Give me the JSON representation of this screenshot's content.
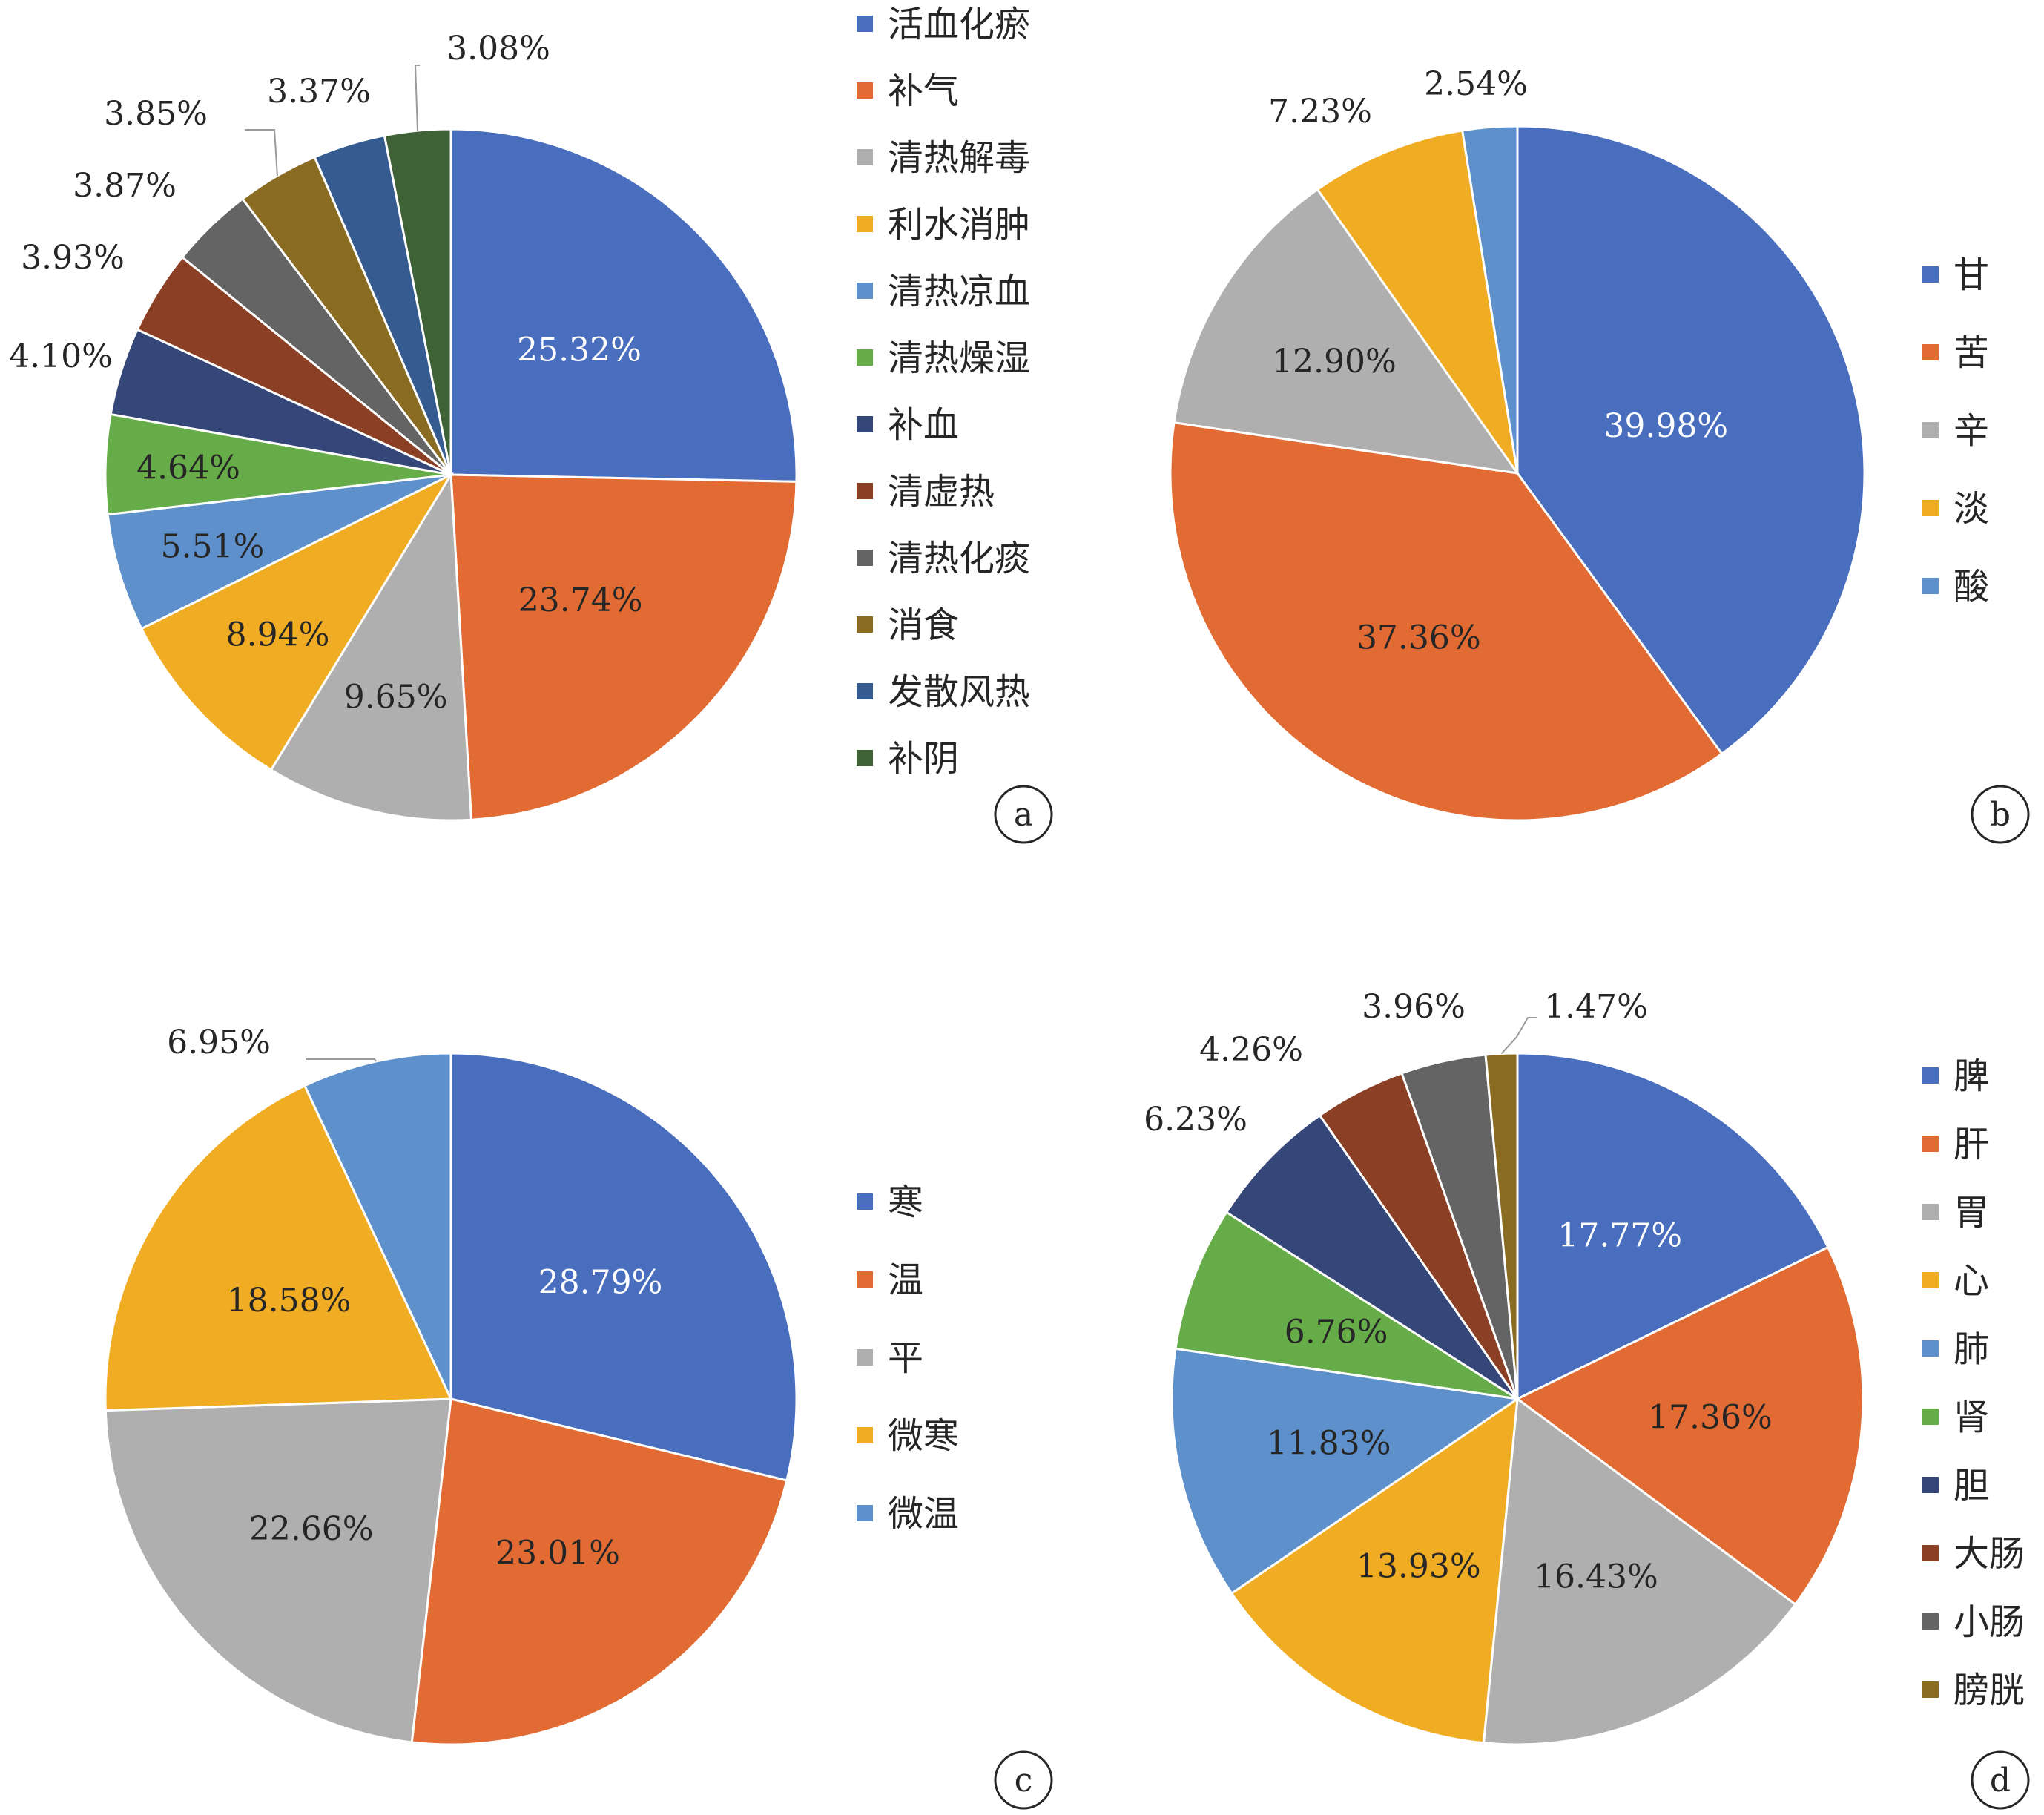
{
  "colors": {
    "blue": "#4A6EBE",
    "orange": "#E26B33",
    "gray": "#AFAFAF",
    "gold": "#F0AD24",
    "lightblue": "#5E91CB",
    "green": "#66AC48",
    "navy": "#354779",
    "brown": "#8B3F24",
    "darkgray": "#646464",
    "olive": "#8A6B22",
    "steelblue": "#355B91",
    "darkgreen": "#3E6135"
  },
  "chart_data": [
    {
      "type": "pie",
      "panel": "a",
      "slices": [
        {
          "label": "活血化瘀",
          "value": 25.32,
          "display": "25.32%",
          "color": "#4A6EBE"
        },
        {
          "label": "补气",
          "value": 23.74,
          "display": "23.74%",
          "color": "#E26B33"
        },
        {
          "label": "清热解毒",
          "value": 9.65,
          "display": "9.65%",
          "color": "#AFAFAF"
        },
        {
          "label": "利水消肿",
          "value": 8.94,
          "display": "8.94%",
          "color": "#F0AD24"
        },
        {
          "label": "清热凉血",
          "value": 5.51,
          "display": "5.51%",
          "color": "#5E91CB"
        },
        {
          "label": "清热燥湿",
          "value": 4.64,
          "display": "4.64%",
          "color": "#66AC48"
        },
        {
          "label": "补血",
          "value": 4.1,
          "display": "4.10%",
          "color": "#354779"
        },
        {
          "label": "清虚热",
          "value": 3.93,
          "display": "3.93%",
          "color": "#8B3F24"
        },
        {
          "label": "清热化痰",
          "value": 3.87,
          "display": "3.87%",
          "color": "#646464"
        },
        {
          "label": "消食",
          "value": 3.85,
          "display": "3.85%",
          "color": "#8A6B22"
        },
        {
          "label": "发散风热",
          "value": 3.37,
          "display": "3.37%",
          "color": "#355B91"
        },
        {
          "label": "补阴",
          "value": 3.08,
          "display": "3.08%",
          "color": "#3E6135"
        }
      ]
    },
    {
      "type": "pie",
      "panel": "b",
      "slices": [
        {
          "label": "甘",
          "value": 39.98,
          "display": "39.98%",
          "color": "#4A6EBE"
        },
        {
          "label": "苦",
          "value": 37.36,
          "display": "37.36%",
          "color": "#E26B33"
        },
        {
          "label": "辛",
          "value": 12.9,
          "display": "12.90%",
          "color": "#AFAFAF"
        },
        {
          "label": "淡",
          "value": 7.23,
          "display": "7.23%",
          "color": "#F0AD24"
        },
        {
          "label": "酸",
          "value": 2.54,
          "display": "2.54%",
          "color": "#5E91CB"
        }
      ]
    },
    {
      "type": "pie",
      "panel": "c",
      "slices": [
        {
          "label": "寒",
          "value": 28.79,
          "display": "28.79%",
          "color": "#4A6EBE"
        },
        {
          "label": "温",
          "value": 23.01,
          "display": "23.01%",
          "color": "#E26B33"
        },
        {
          "label": "平",
          "value": 22.66,
          "display": "22.66%",
          "color": "#AFAFAF"
        },
        {
          "label": "微寒",
          "value": 18.58,
          "display": "18.58%",
          "color": "#F0AD24"
        },
        {
          "label": "微温",
          "value": 6.95,
          "display": "6.95%",
          "color": "#5E91CB"
        }
      ]
    },
    {
      "type": "pie",
      "panel": "d",
      "slices": [
        {
          "label": "脾",
          "value": 17.77,
          "display": "17.77%",
          "color": "#4A6EBE"
        },
        {
          "label": "肝",
          "value": 17.36,
          "display": "17.36%",
          "color": "#E26B33"
        },
        {
          "label": "胃",
          "value": 16.43,
          "display": "16.43%",
          "color": "#AFAFAF"
        },
        {
          "label": "心",
          "value": 13.93,
          "display": "13.93%",
          "color": "#F0AD24"
        },
        {
          "label": "肺",
          "value": 11.83,
          "display": "11.83%",
          "color": "#5E91CB"
        },
        {
          "label": "肾",
          "value": 6.76,
          "display": "6.76%",
          "color": "#66AC48"
        },
        {
          "label": "胆",
          "value": 6.23,
          "display": "6.23%",
          "color": "#354779"
        },
        {
          "label": "大肠",
          "value": 4.26,
          "display": "4.26%",
          "color": "#8B3F24"
        },
        {
          "label": "小肠",
          "value": 3.96,
          "display": "3.96%",
          "color": "#646464"
        },
        {
          "label": "膀胱",
          "value": 1.47,
          "display": "1.47%",
          "color": "#8A6B22"
        }
      ]
    }
  ]
}
